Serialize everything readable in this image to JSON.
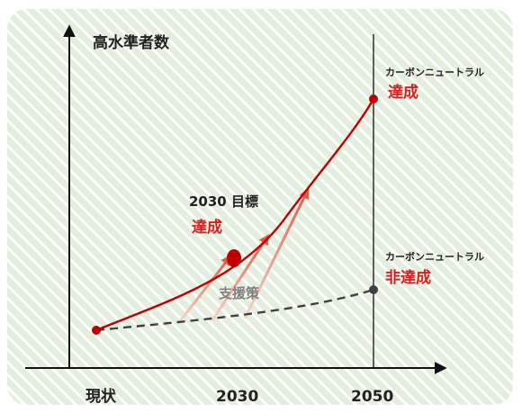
{
  "colors": {
    "stripe_bg": "#e3efdc",
    "stripe_line": "#ffffff",
    "axis": "#111111",
    "achieve_line": "#c00000",
    "baseline_line": "#404040",
    "support_arrow_start": "#f6d6c8",
    "support_arrow_end": "#d95b4a",
    "support_text": "#7f7f7f",
    "red_text": "#d42020"
  },
  "y_axis_label": "高水準者数",
  "x_labels": {
    "present": "現状",
    "y2030": "2030",
    "y2050": "2050"
  },
  "milestone_2030": {
    "title": "2030 目標",
    "status": "達成"
  },
  "outcome_achieved": {
    "title": "カーボンニュートラル",
    "status": "達成"
  },
  "outcome_not_achieved": {
    "title": "カーボンニュートラル",
    "status": "非達成"
  },
  "support_label": "支援策"
}
